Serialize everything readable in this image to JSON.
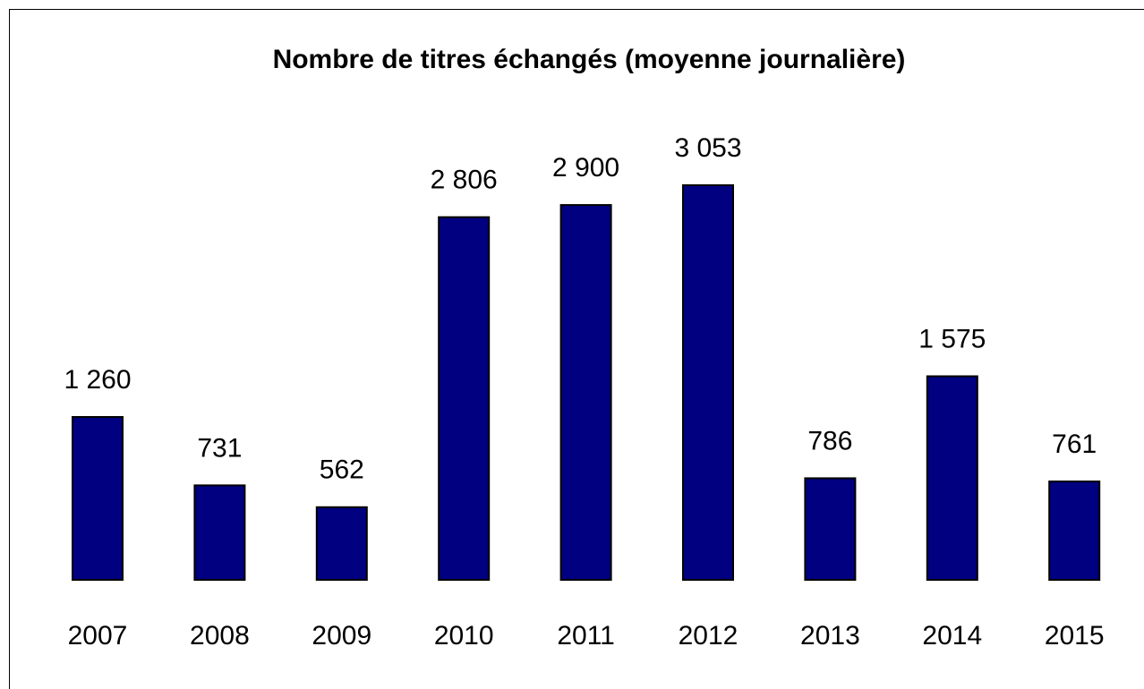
{
  "chart_data": {
    "type": "bar",
    "title": "Nombre de titres échangés (moyenne journalière)",
    "categories": [
      "2007",
      "2008",
      "2009",
      "2010",
      "2011",
      "2012",
      "2013",
      "2014",
      "2015"
    ],
    "values": [
      1260,
      731,
      562,
      2806,
      2900,
      3053,
      786,
      1575,
      761
    ],
    "value_labels": [
      "1 260",
      "731",
      "562",
      "2 806",
      "2 900",
      "3 053",
      "786",
      "1 575",
      "761"
    ],
    "color": "#000080"
  }
}
